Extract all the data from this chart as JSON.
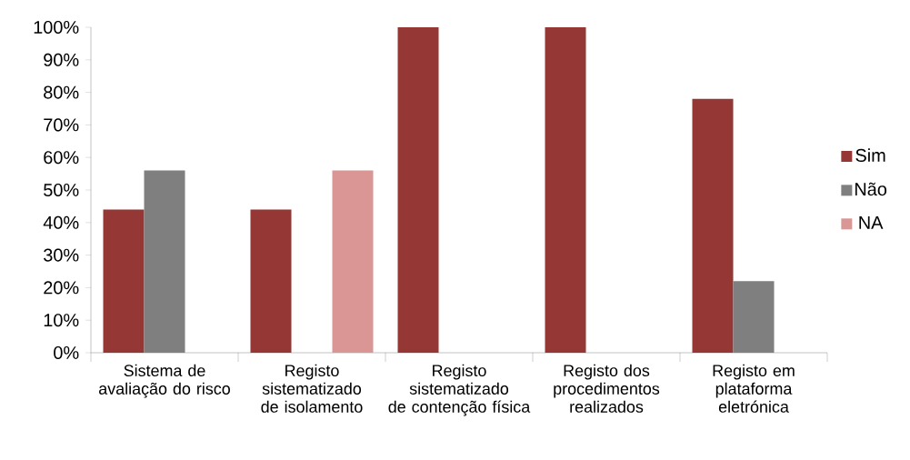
{
  "chart_data": {
    "type": "bar",
    "categories": [
      "Sistema de avaliação do risco",
      "Registo sistematizado de isolamento",
      "Registo sistematizado de contenção física",
      "Registo dos procedimentos realizados",
      "Registo em plataforma eletrónica"
    ],
    "series": [
      {
        "name": "Sim",
        "color": "#953735",
        "values": [
          44,
          44,
          100,
          100,
          78
        ]
      },
      {
        "name": "Não",
        "color": "#7f7f7f",
        "values": [
          56,
          null,
          null,
          null,
          22
        ]
      },
      {
        "name": "NA",
        "color": "#d99694",
        "values": [
          null,
          56,
          null,
          null,
          null
        ]
      }
    ],
    "ylim": [
      0,
      100
    ],
    "yticks": [
      {
        "value": 0,
        "label": "0%"
      },
      {
        "value": 10,
        "label": "10%"
      },
      {
        "value": 20,
        "label": "20%"
      },
      {
        "value": 30,
        "label": "30%"
      },
      {
        "value": 40,
        "label": "40%"
      },
      {
        "value": 50,
        "label": "50%"
      },
      {
        "value": 60,
        "label": "60%"
      },
      {
        "value": 70,
        "label": "70%"
      },
      {
        "value": 80,
        "label": "80%"
      },
      {
        "value": 90,
        "label": "90%"
      },
      {
        "value": 100,
        "label": "100%"
      }
    ],
    "legend": "right"
  }
}
